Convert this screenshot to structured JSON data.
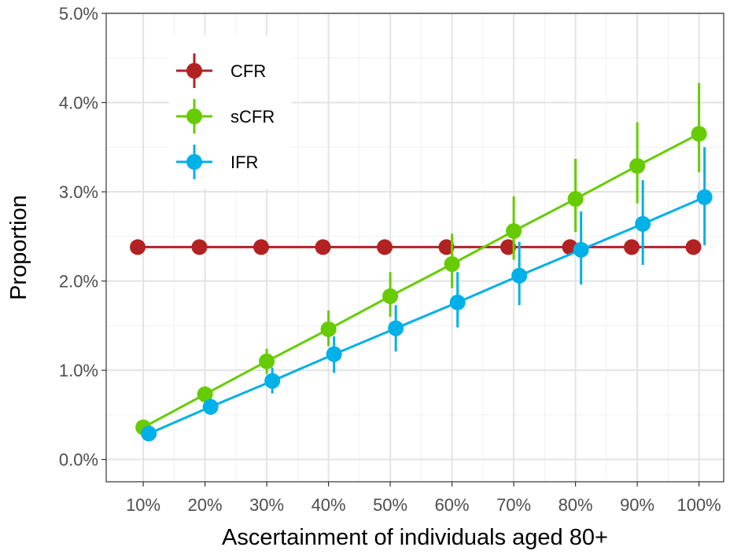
{
  "chart_data": {
    "type": "line",
    "xlabel": "Ascertainment of individuals aged 80+",
    "ylabel": "Proportion",
    "categories": [
      "10%",
      "20%",
      "30%",
      "40%",
      "50%",
      "60%",
      "70%",
      "80%",
      "90%",
      "100%"
    ],
    "x": [
      10,
      20,
      30,
      40,
      50,
      60,
      70,
      80,
      90,
      100
    ],
    "xlim": [
      4,
      104
    ],
    "ylim": [
      -0.25,
      5.0
    ],
    "yticks": [
      0.0,
      1.0,
      2.0,
      3.0,
      4.0,
      5.0
    ],
    "ytick_labels": [
      "0.0%",
      "1.0%",
      "2.0%",
      "3.0%",
      "4.0%",
      "5.0%"
    ],
    "grid": true,
    "legend_position": "top-left",
    "series": [
      {
        "name": "CFR",
        "color": "#b22222",
        "values": [
          2.38,
          2.38,
          2.38,
          2.38,
          2.38,
          2.38,
          2.38,
          2.38,
          2.38,
          2.38
        ],
        "lower": [
          2.38,
          2.38,
          2.38,
          2.38,
          2.38,
          2.38,
          2.38,
          2.38,
          2.38,
          2.38
        ],
        "upper": [
          2.38,
          2.38,
          2.38,
          2.38,
          2.38,
          2.38,
          2.38,
          2.38,
          2.38,
          2.38
        ]
      },
      {
        "name": "sCFR",
        "color": "#66cc00",
        "values": [
          0.36,
          0.73,
          1.1,
          1.46,
          1.83,
          2.19,
          2.56,
          2.92,
          3.29,
          3.65
        ],
        "lower": [
          0.31,
          0.65,
          0.96,
          1.27,
          1.6,
          1.92,
          2.24,
          2.55,
          2.87,
          3.22
        ],
        "upper": [
          0.41,
          0.82,
          1.24,
          1.67,
          2.1,
          2.53,
          2.95,
          3.37,
          3.78,
          4.22
        ]
      },
      {
        "name": "IFR",
        "color": "#00b0e8",
        "values": [
          0.29,
          0.59,
          0.88,
          1.18,
          1.47,
          1.76,
          2.06,
          2.35,
          2.64,
          2.94
        ],
        "lower": [
          0.25,
          0.5,
          0.74,
          0.97,
          1.21,
          1.48,
          1.73,
          1.96,
          2.18,
          2.4
        ],
        "upper": [
          0.33,
          0.68,
          1.03,
          1.38,
          1.73,
          2.1,
          2.44,
          2.78,
          3.13,
          3.5
        ]
      }
    ]
  }
}
